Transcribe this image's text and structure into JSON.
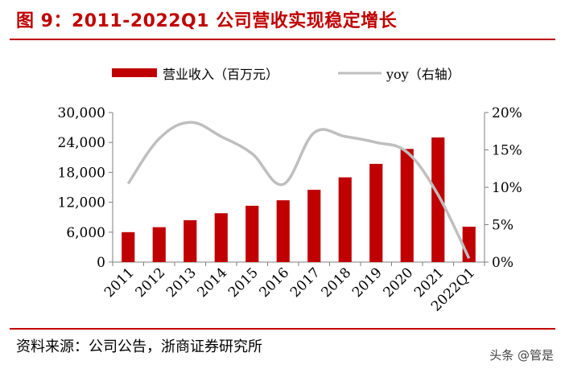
{
  "title": "图 9：2011-2022Q1 公司营收实现稳定增长",
  "source": "资料来源：公司公告，浙商证券研究所",
  "watermark": "头条 @管是",
  "colors": {
    "bar": "#c00000",
    "line": "#bfbfbf",
    "title": "#c00000"
  },
  "chart_data": {
    "type": "bar",
    "categories": [
      "2011",
      "2012",
      "2013",
      "2014",
      "2015",
      "2016",
      "2017",
      "2018",
      "2019",
      "2020",
      "2021",
      "2022Q1"
    ],
    "series": [
      {
        "name": "营业收入（百万元）",
        "type": "bar",
        "axis": "left",
        "values": [
          6000,
          7000,
          8400,
          9800,
          11300,
          12400,
          14500,
          17000,
          19700,
          22700,
          25000,
          7100
        ]
      },
      {
        "name": "yoy（右轴）",
        "type": "line",
        "axis": "right",
        "values": [
          10.5,
          16.5,
          18.7,
          16.8,
          14.5,
          10.4,
          17.3,
          16.8,
          16.0,
          14.7,
          9.0,
          0.5
        ]
      }
    ],
    "left_axis": {
      "ticks": [
        "0",
        "6,000",
        "12,000",
        "18,000",
        "24,000",
        "30,000"
      ],
      "ylim": [
        0,
        30000
      ]
    },
    "right_axis": {
      "ticks": [
        "0%",
        "5%",
        "10%",
        "15%",
        "20%"
      ],
      "ylim": [
        0,
        20
      ]
    },
    "legend_position": "top-center",
    "grid": false
  }
}
